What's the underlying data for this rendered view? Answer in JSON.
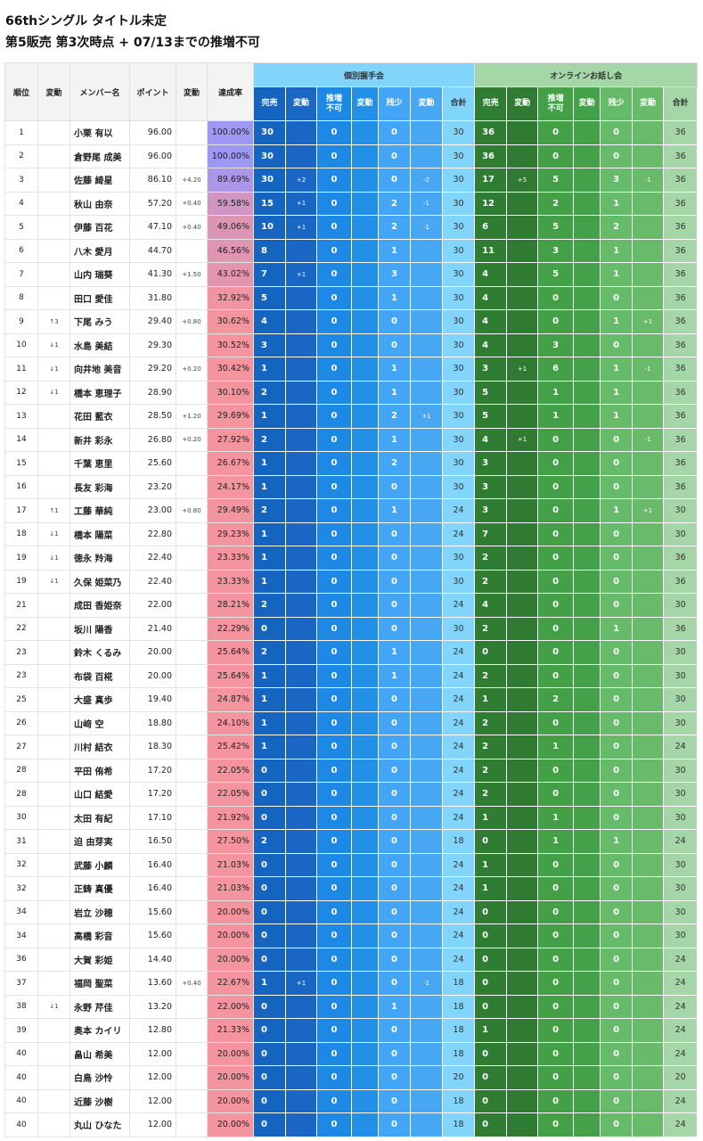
{
  "title": "66thシングル タイトル未定",
  "subtitle": "第5販売 第3次時点 + 07/13までの推増不可",
  "headers": {
    "rank": "順位",
    "rank_change": "変動",
    "name": "メンバー名",
    "points": "ポイント",
    "points_change": "変動",
    "rate": "達成率",
    "group1": "個別握手会",
    "group2": "オンラインお話し会",
    "sub": [
      "完売",
      "変動",
      "推増\n不可",
      "変動",
      "残少",
      "変動",
      "合計"
    ]
  },
  "colors": {
    "blue": [
      "#1565c0",
      "#1a66c4",
      "#1e88e5",
      "#2290e6",
      "#42a5f5",
      "#47a7f3",
      "#81d4fa"
    ],
    "green": [
      "#2e7d32",
      "#2f7b33",
      "#43a047",
      "#45a149",
      "#66bb6a",
      "#69bb6b",
      "#a5d6a7"
    ],
    "rate_high": "#9f97f4",
    "rate_low": "#f4949e"
  },
  "rows": [
    [
      "1",
      "",
      "小栗 有以",
      "96.00",
      "",
      "100.00%",
      "30",
      "",
      "0",
      "",
      "0",
      "",
      "30",
      "36",
      "",
      "0",
      "",
      "0",
      "",
      "36"
    ],
    [
      "2",
      "",
      "倉野尾 成美",
      "96.00",
      "",
      "100.00%",
      "30",
      "",
      "0",
      "",
      "0",
      "",
      "30",
      "36",
      "",
      "0",
      "",
      "0",
      "",
      "36"
    ],
    [
      "3",
      "",
      "佐藤 綺星",
      "86.10",
      "+4.20",
      "89.69%",
      "30",
      "+2",
      "0",
      "",
      "0",
      "-2",
      "30",
      "17",
      "+5",
      "5",
      "",
      "3",
      "-1",
      "36"
    ],
    [
      "4",
      "",
      "秋山 由奈",
      "57.20",
      "+0.40",
      "59.58%",
      "15",
      "+1",
      "0",
      "",
      "2",
      "-1",
      "30",
      "12",
      "",
      "2",
      "",
      "1",
      "",
      "36"
    ],
    [
      "5",
      "",
      "伊藤 百花",
      "47.10",
      "+0.40",
      "49.06%",
      "10",
      "+1",
      "0",
      "",
      "2",
      "-1",
      "30",
      "6",
      "",
      "5",
      "",
      "2",
      "",
      "36"
    ],
    [
      "6",
      "",
      "八木 愛月",
      "44.70",
      "",
      "46.56%",
      "8",
      "",
      "0",
      "",
      "1",
      "",
      "30",
      "11",
      "",
      "3",
      "",
      "1",
      "",
      "36"
    ],
    [
      "7",
      "",
      "山内 瑞葵",
      "41.30",
      "+1.50",
      "43.02%",
      "7",
      "+1",
      "0",
      "",
      "3",
      "",
      "30",
      "4",
      "",
      "5",
      "",
      "1",
      "",
      "36"
    ],
    [
      "8",
      "",
      "田口 愛佳",
      "31.80",
      "",
      "32.92%",
      "5",
      "",
      "0",
      "",
      "1",
      "",
      "30",
      "4",
      "",
      "0",
      "",
      "0",
      "",
      "36"
    ],
    [
      "9",
      "↑3",
      "下尾 みう",
      "29.40",
      "+0.80",
      "30.62%",
      "4",
      "",
      "0",
      "",
      "0",
      "",
      "30",
      "4",
      "",
      "0",
      "",
      "1",
      "+1",
      "36"
    ],
    [
      "10",
      "↓1",
      "水島 美結",
      "29.30",
      "",
      "30.52%",
      "3",
      "",
      "0",
      "",
      "0",
      "",
      "30",
      "4",
      "",
      "3",
      "",
      "0",
      "",
      "36"
    ],
    [
      "11",
      "↓1",
      "向井地 美音",
      "29.20",
      "+0.20",
      "30.42%",
      "1",
      "",
      "0",
      "",
      "1",
      "",
      "30",
      "3",
      "+1",
      "6",
      "",
      "1",
      "-1",
      "36"
    ],
    [
      "12",
      "↓1",
      "橋本 恵理子",
      "28.90",
      "",
      "30.10%",
      "2",
      "",
      "0",
      "",
      "1",
      "",
      "30",
      "5",
      "",
      "1",
      "",
      "1",
      "",
      "36"
    ],
    [
      "13",
      "",
      "花田 藍衣",
      "28.50",
      "+1.20",
      "29.69%",
      "1",
      "",
      "0",
      "",
      "2",
      "+1",
      "30",
      "5",
      "",
      "1",
      "",
      "1",
      "",
      "36"
    ],
    [
      "14",
      "",
      "新井 彩永",
      "26.80",
      "+0.20",
      "27.92%",
      "2",
      "",
      "0",
      "",
      "1",
      "",
      "30",
      "4",
      "+1",
      "0",
      "",
      "0",
      "-1",
      "36"
    ],
    [
      "15",
      "",
      "千葉 恵里",
      "25.60",
      "",
      "26.67%",
      "1",
      "",
      "0",
      "",
      "2",
      "",
      "30",
      "3",
      "",
      "0",
      "",
      "0",
      "",
      "36"
    ],
    [
      "16",
      "",
      "長友 彩海",
      "23.20",
      "",
      "24.17%",
      "1",
      "",
      "0",
      "",
      "0",
      "",
      "30",
      "3",
      "",
      "0",
      "",
      "0",
      "",
      "36"
    ],
    [
      "17",
      "↑1",
      "工藤 華純",
      "23.00",
      "+0.80",
      "29.49%",
      "2",
      "",
      "0",
      "",
      "1",
      "",
      "24",
      "3",
      "",
      "0",
      "",
      "1",
      "+1",
      "30"
    ],
    [
      "18",
      "↓1",
      "橋本 陽菜",
      "22.80",
      "",
      "29.23%",
      "1",
      "",
      "0",
      "",
      "0",
      "",
      "24",
      "7",
      "",
      "0",
      "",
      "0",
      "",
      "30"
    ],
    [
      "19",
      "↓1",
      "徳永 羚海",
      "22.40",
      "",
      "23.33%",
      "1",
      "",
      "0",
      "",
      "0",
      "",
      "30",
      "2",
      "",
      "0",
      "",
      "0",
      "",
      "36"
    ],
    [
      "19",
      "↓1",
      "久保 姫菜乃",
      "22.40",
      "",
      "23.33%",
      "1",
      "",
      "0",
      "",
      "0",
      "",
      "30",
      "2",
      "",
      "0",
      "",
      "0",
      "",
      "36"
    ],
    [
      "21",
      "",
      "成田 香姫奈",
      "22.00",
      "",
      "28.21%",
      "2",
      "",
      "0",
      "",
      "0",
      "",
      "24",
      "4",
      "",
      "0",
      "",
      "0",
      "",
      "30"
    ],
    [
      "22",
      "",
      "坂川 陽香",
      "21.40",
      "",
      "22.29%",
      "0",
      "",
      "0",
      "",
      "0",
      "",
      "30",
      "2",
      "",
      "0",
      "",
      "1",
      "",
      "36"
    ],
    [
      "23",
      "",
      "鈴木 くるみ",
      "20.00",
      "",
      "25.64%",
      "2",
      "",
      "0",
      "",
      "1",
      "",
      "24",
      "0",
      "",
      "0",
      "",
      "0",
      "",
      "30"
    ],
    [
      "23",
      "",
      "布袋 百椛",
      "20.00",
      "",
      "25.64%",
      "1",
      "",
      "0",
      "",
      "1",
      "",
      "24",
      "2",
      "",
      "0",
      "",
      "0",
      "",
      "30"
    ],
    [
      "25",
      "",
      "大盛 真歩",
      "19.40",
      "",
      "24.87%",
      "1",
      "",
      "0",
      "",
      "0",
      "",
      "24",
      "1",
      "",
      "2",
      "",
      "0",
      "",
      "30"
    ],
    [
      "26",
      "",
      "山﨑 空",
      "18.80",
      "",
      "24.10%",
      "1",
      "",
      "0",
      "",
      "0",
      "",
      "24",
      "2",
      "",
      "0",
      "",
      "0",
      "",
      "30"
    ],
    [
      "27",
      "",
      "川村 結衣",
      "18.30",
      "",
      "25.42%",
      "1",
      "",
      "0",
      "",
      "0",
      "",
      "24",
      "2",
      "",
      "1",
      "",
      "0",
      "",
      "24"
    ],
    [
      "28",
      "",
      "平田 侑希",
      "17.20",
      "",
      "22.05%",
      "0",
      "",
      "0",
      "",
      "0",
      "",
      "24",
      "2",
      "",
      "0",
      "",
      "0",
      "",
      "30"
    ],
    [
      "28",
      "",
      "山口 結愛",
      "17.20",
      "",
      "22.05%",
      "0",
      "",
      "0",
      "",
      "0",
      "",
      "24",
      "2",
      "",
      "0",
      "",
      "0",
      "",
      "30"
    ],
    [
      "30",
      "",
      "太田 有紀",
      "17.10",
      "",
      "21.92%",
      "0",
      "",
      "0",
      "",
      "0",
      "",
      "24",
      "1",
      "",
      "1",
      "",
      "0",
      "",
      "30"
    ],
    [
      "31",
      "",
      "迫 由芽実",
      "16.50",
      "",
      "27.50%",
      "2",
      "",
      "0",
      "",
      "0",
      "",
      "18",
      "0",
      "",
      "1",
      "",
      "1",
      "",
      "24"
    ],
    [
      "32",
      "",
      "武藤 小麟",
      "16.40",
      "",
      "21.03%",
      "0",
      "",
      "0",
      "",
      "0",
      "",
      "24",
      "1",
      "",
      "0",
      "",
      "0",
      "",
      "30"
    ],
    [
      "32",
      "",
      "正鋳 真優",
      "16.40",
      "",
      "21.03%",
      "0",
      "",
      "0",
      "",
      "0",
      "",
      "24",
      "1",
      "",
      "0",
      "",
      "0",
      "",
      "30"
    ],
    [
      "34",
      "",
      "岩立 沙穂",
      "15.60",
      "",
      "20.00%",
      "0",
      "",
      "0",
      "",
      "0",
      "",
      "24",
      "0",
      "",
      "0",
      "",
      "0",
      "",
      "30"
    ],
    [
      "34",
      "",
      "高橋 彩音",
      "15.60",
      "",
      "20.00%",
      "0",
      "",
      "0",
      "",
      "0",
      "",
      "24",
      "0",
      "",
      "0",
      "",
      "0",
      "",
      "30"
    ],
    [
      "36",
      "",
      "大賀 彩姫",
      "14.40",
      "",
      "20.00%",
      "0",
      "",
      "0",
      "",
      "0",
      "",
      "24",
      "0",
      "",
      "0",
      "",
      "0",
      "",
      "24"
    ],
    [
      "37",
      "",
      "福岡 聖菜",
      "13.60",
      "+0.40",
      "22.67%",
      "1",
      "+1",
      "0",
      "",
      "0",
      "-1",
      "18",
      "0",
      "",
      "0",
      "",
      "0",
      "",
      "24"
    ],
    [
      "38",
      "↓1",
      "永野 芹佳",
      "13.20",
      "",
      "22.00%",
      "0",
      "",
      "0",
      "",
      "1",
      "",
      "18",
      "0",
      "",
      "0",
      "",
      "0",
      "",
      "24"
    ],
    [
      "39",
      "",
      "奥本 カイリ",
      "12.80",
      "",
      "21.33%",
      "0",
      "",
      "0",
      "",
      "0",
      "",
      "18",
      "1",
      "",
      "0",
      "",
      "0",
      "",
      "24"
    ],
    [
      "40",
      "",
      "畠山 希美",
      "12.00",
      "",
      "20.00%",
      "0",
      "",
      "0",
      "",
      "0",
      "",
      "18",
      "0",
      "",
      "0",
      "",
      "0",
      "",
      "24"
    ],
    [
      "40",
      "",
      "白鳥 沙怜",
      "12.00",
      "",
      "20.00%",
      "0",
      "",
      "0",
      "",
      "0",
      "",
      "20",
      "0",
      "",
      "0",
      "",
      "0",
      "",
      "20"
    ],
    [
      "40",
      "",
      "近藤 沙樹",
      "12.00",
      "",
      "20.00%",
      "0",
      "",
      "0",
      "",
      "0",
      "",
      "18",
      "0",
      "",
      "0",
      "",
      "0",
      "",
      "24"
    ],
    [
      "40",
      "",
      "丸山 ひなた",
      "12.00",
      "",
      "20.00%",
      "0",
      "",
      "0",
      "",
      "0",
      "",
      "18",
      "0",
      "",
      "0",
      "",
      "0",
      "",
      "24"
    ]
  ]
}
